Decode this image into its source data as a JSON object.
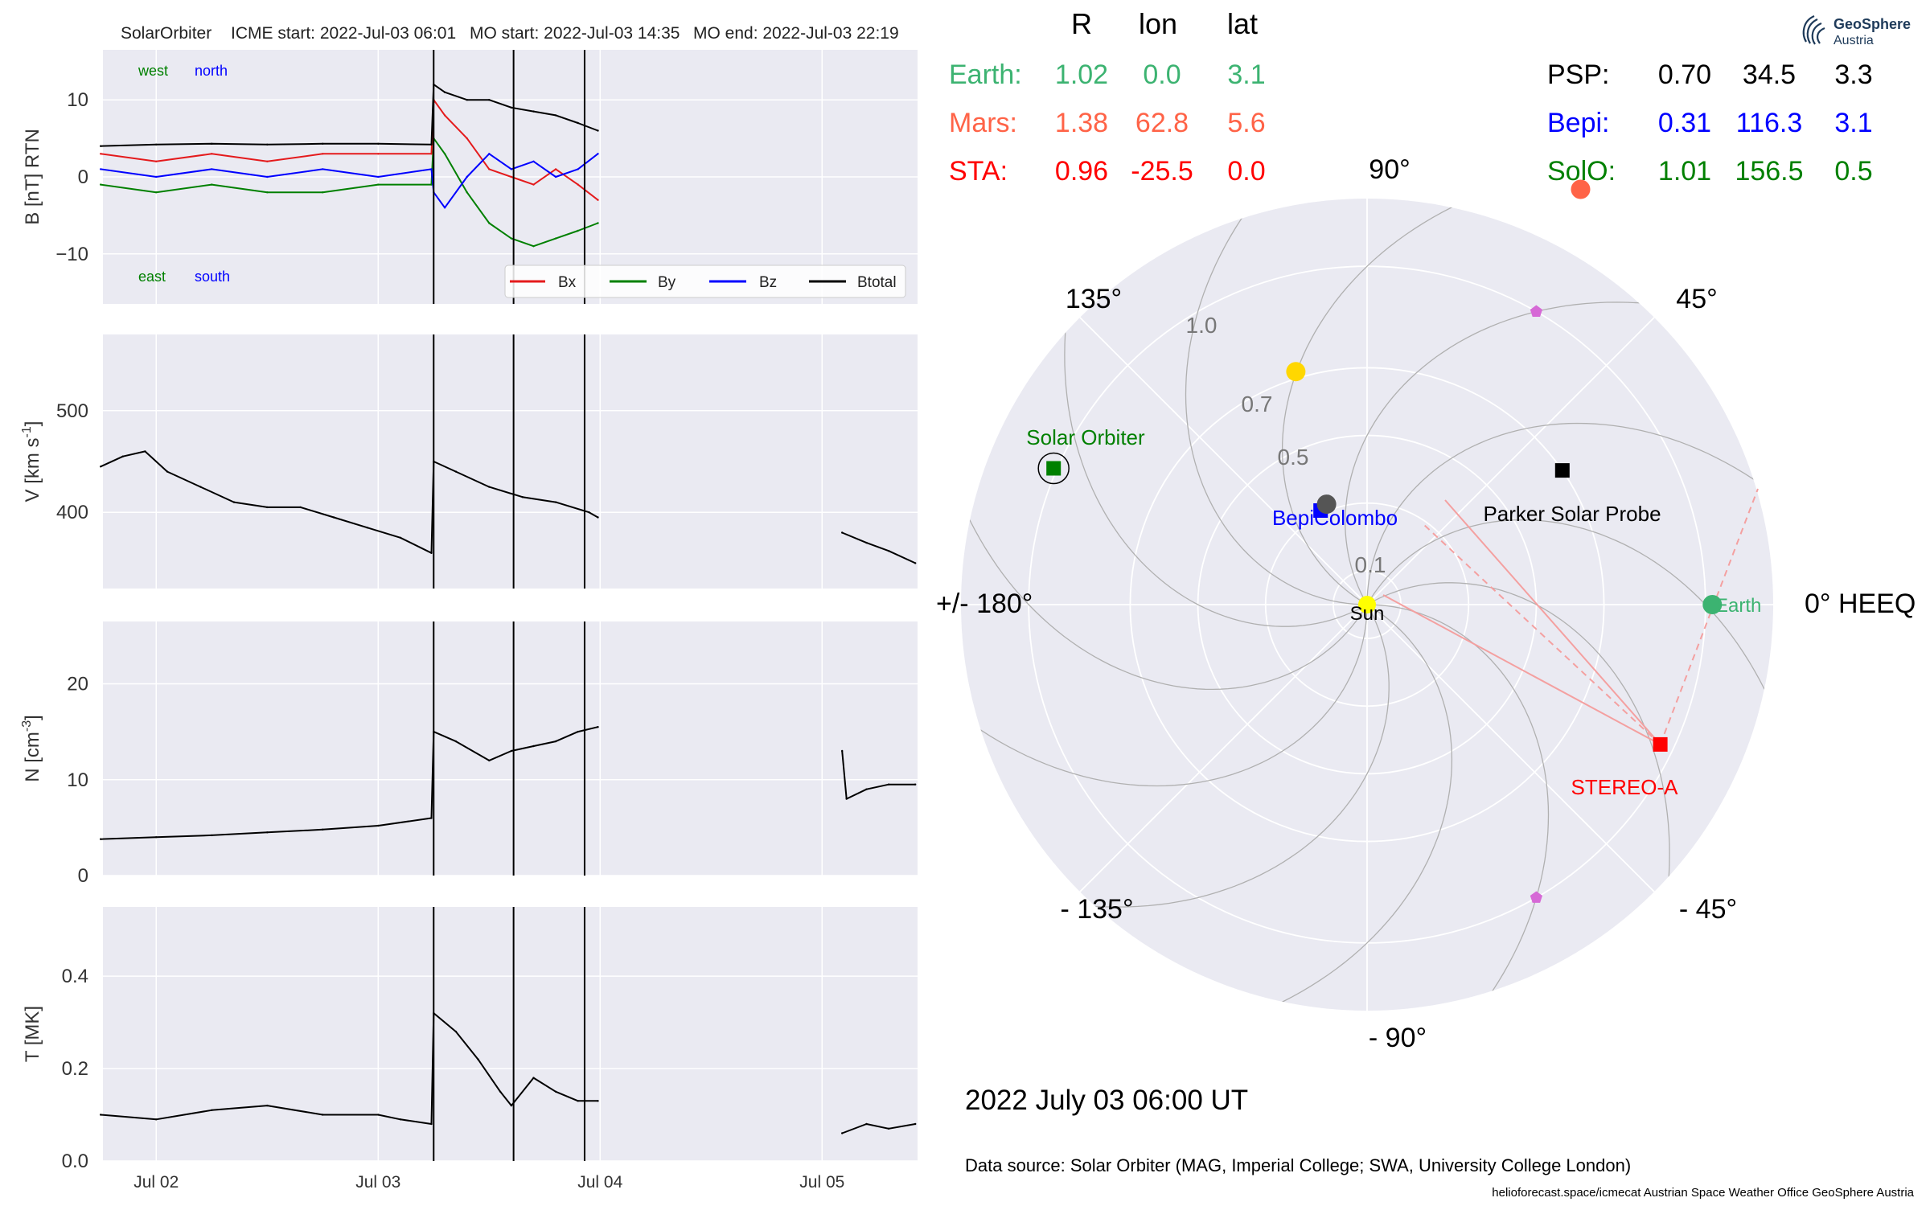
{
  "header": {
    "spacecraft": "SolarOrbiter",
    "icme_start": "ICME start: 2022-Jul-03 06:01",
    "mo_start": "MO start: 2022-Jul-03 14:35",
    "mo_end": "MO end: 2022-Jul-03 22:19"
  },
  "chart_data": [
    {
      "type": "line",
      "panel": "magnetic field",
      "ylabel": "B [nT] RTN",
      "ylim": [
        -16.5,
        16.5
      ],
      "yticks": [
        -10,
        0,
        10
      ],
      "annotations": {
        "west": "west",
        "north": "north",
        "east": "east",
        "south": "south"
      },
      "legend": {
        "placement": "bottom-right",
        "entries": [
          "Bx",
          "By",
          "Bz",
          "Btotal"
        ]
      },
      "series": [
        {
          "name": "Bx",
          "color": "#e41a1c",
          "x": [
            1.75,
            2.0,
            2.25,
            2.5,
            2.75,
            3.0,
            3.24,
            3.25,
            3.3,
            3.4,
            3.5,
            3.6,
            3.7,
            3.8,
            3.9,
            3.99
          ],
          "y": [
            3,
            2,
            3,
            2,
            3,
            3,
            3,
            10,
            8,
            5,
            1,
            0,
            -1,
            1,
            -1,
            -3
          ]
        },
        {
          "name": "By",
          "color": "#008000",
          "x": [
            1.75,
            2.0,
            2.25,
            2.5,
            2.75,
            3.0,
            3.24,
            3.25,
            3.3,
            3.4,
            3.5,
            3.6,
            3.7,
            3.8,
            3.9,
            3.99
          ],
          "y": [
            -1,
            -2,
            -1,
            -2,
            -2,
            -1,
            -1,
            5,
            3,
            -2,
            -6,
            -8,
            -9,
            -8,
            -7,
            -6
          ]
        },
        {
          "name": "Bz",
          "color": "#0000ff",
          "x": [
            1.75,
            2.0,
            2.25,
            2.5,
            2.75,
            3.0,
            3.24,
            3.25,
            3.3,
            3.4,
            3.5,
            3.6,
            3.7,
            3.8,
            3.9,
            3.99
          ],
          "y": [
            1,
            0,
            1,
            0,
            1,
            0,
            1,
            -2,
            -4,
            0,
            3,
            1,
            2,
            0,
            1,
            3
          ]
        },
        {
          "name": "Btotal",
          "color": "#000000",
          "x": [
            1.75,
            2.0,
            2.25,
            2.5,
            2.75,
            3.0,
            3.24,
            3.25,
            3.3,
            3.4,
            3.5,
            3.6,
            3.7,
            3.8,
            3.9,
            3.99
          ],
          "y": [
            4,
            4.2,
            4.3,
            4.2,
            4.3,
            4.3,
            4.2,
            12,
            11,
            10,
            10,
            9,
            8.5,
            8,
            7,
            6
          ]
        }
      ]
    },
    {
      "type": "line",
      "panel": "speed",
      "ylabel": "V [km s$^{-1}$]",
      "ylim": [
        325,
        575
      ],
      "yticks": [
        400,
        500
      ],
      "series": [
        {
          "name": "",
          "color": "#000000",
          "x": [
            1.75,
            1.85,
            1.95,
            2.05,
            2.2,
            2.35,
            2.5,
            2.65,
            2.8,
            2.95,
            3.1,
            3.24,
            3.25,
            3.35,
            3.5,
            3.65,
            3.8,
            3.95,
            3.99
          ],
          "y": [
            445,
            455,
            460,
            440,
            425,
            410,
            405,
            405,
            395,
            385,
            375,
            360,
            450,
            440,
            425,
            415,
            410,
            400,
            395
          ]
        },
        {
          "name": "",
          "color": "#000000",
          "x": [
            5.09,
            5.2,
            5.3,
            5.42
          ],
          "y": [
            380,
            370,
            362,
            350
          ]
        }
      ]
    },
    {
      "type": "line",
      "panel": "density",
      "ylabel": "N [cm$^{-3}$]",
      "ylim": [
        0,
        26.5
      ],
      "yticks": [
        0,
        10,
        20
      ],
      "series": [
        {
          "name": "",
          "color": "#000000",
          "x": [
            1.75,
            2.0,
            2.25,
            2.5,
            2.75,
            3.0,
            3.24,
            3.25,
            3.35,
            3.5,
            3.6,
            3.7,
            3.8,
            3.9,
            3.99
          ],
          "y": [
            3.8,
            4,
            4.2,
            4.5,
            4.8,
            5.2,
            6,
            15,
            14,
            12,
            13,
            13.5,
            14,
            15,
            15.5
          ]
        },
        {
          "name": "",
          "color": "#000000",
          "x": [
            5.09,
            5.11,
            5.2,
            5.3,
            5.42
          ],
          "y": [
            13,
            8,
            9,
            9.5,
            9.5
          ]
        }
      ]
    },
    {
      "type": "line",
      "panel": "temperature",
      "ylabel": "T [MK]",
      "ylim": [
        0,
        0.55
      ],
      "yticks": [
        0.0,
        0.2,
        0.4
      ],
      "xtick_labels": [
        "Jul 02",
        "Jul 03",
        "Jul 04",
        "Jul 05"
      ],
      "xticks": [
        2,
        3,
        4,
        5
      ],
      "xlim": [
        1.76,
        5.43
      ],
      "vertical_lines": [
        3.25,
        3.61,
        3.93
      ],
      "series": [
        {
          "name": "",
          "color": "#000000",
          "x": [
            1.75,
            2.0,
            2.25,
            2.5,
            2.75,
            3.0,
            3.1,
            3.24,
            3.25,
            3.35,
            3.45,
            3.55,
            3.6,
            3.7,
            3.8,
            3.9,
            3.99
          ],
          "y": [
            0.1,
            0.09,
            0.11,
            0.12,
            0.1,
            0.1,
            0.09,
            0.08,
            0.32,
            0.28,
            0.22,
            0.15,
            0.12,
            0.18,
            0.15,
            0.13,
            0.13
          ]
        },
        {
          "name": "",
          "color": "#000000",
          "x": [
            5.09,
            5.2,
            5.3,
            5.42
          ],
          "y": [
            0.06,
            0.08,
            0.07,
            0.08
          ]
        }
      ]
    },
    {
      "type": "scatter",
      "panel": "heliospheric position (polar)",
      "angle_labels": {
        "a90": "90°",
        "a45": "45°",
        "a0": "0° HEEQ",
        "am45": "- 45°",
        "am90": "- 90°",
        "am135": "- 135°",
        "a180": "+/- 180°",
        "a135": "135°"
      },
      "radial_ticks": [
        "0.1",
        "0.5",
        "0.7",
        "1.0"
      ],
      "rlim": [
        0,
        1.2
      ],
      "bodies": [
        {
          "name": "Sun",
          "label": "Sun",
          "r": 0,
          "lon": 0,
          "color": "#ffff00",
          "marker": "circle"
        },
        {
          "name": "Earth",
          "label": "Earth",
          "r": 1.02,
          "lon": 0.0,
          "color": "#3cb371",
          "marker": "circle"
        },
        {
          "name": "STEREO-A",
          "label": "STEREO-A",
          "r": 0.96,
          "lon": -25.5,
          "color": "#ff0000",
          "marker": "square"
        },
        {
          "name": "Solar Orbiter",
          "label": "Solar Orbiter",
          "r": 1.01,
          "lon": 156.5,
          "color": "#008000",
          "marker": "square"
        },
        {
          "name": "BepiColombo",
          "label": "BepiColombo",
          "r": 0.31,
          "lon": 116.3,
          "color": "#0000ff",
          "marker": "square"
        },
        {
          "name": "Parker Solar Probe",
          "label": "Parker Solar Probe",
          "r": 0.7,
          "lon": 34.5,
          "color": "#000000",
          "marker": "square"
        },
        {
          "name": "Mars",
          "r": 1.38,
          "lon": 62.8,
          "color": "#ff6347",
          "marker": "circle"
        },
        {
          "name": "Venus",
          "r": 0.72,
          "lon": 107,
          "color": "#ffd700",
          "marker": "circle"
        },
        {
          "name": "Mercury",
          "r": 0.32,
          "lon": 112,
          "color": "#555555",
          "marker": "circle"
        },
        {
          "name": "L4",
          "r": 1.0,
          "lon": 60,
          "color": "#d669d6",
          "marker": "pentagon"
        },
        {
          "name": "L5",
          "r": 1.0,
          "lon": -60,
          "color": "#d669d6",
          "marker": "pentagon"
        }
      ]
    }
  ],
  "positions_table": {
    "headers": [
      "R",
      "lon",
      "lat"
    ],
    "left": [
      {
        "label": "Earth:",
        "r": "1.02",
        "lon": "0.0",
        "lat": "3.1",
        "color": "#3cb371"
      },
      {
        "label": "Mars:",
        "r": "1.38",
        "lon": "62.8",
        "lat": "5.6",
        "color": "#ff6347"
      },
      {
        "label": "STA:",
        "r": "0.96",
        "lon": "-25.5",
        "lat": "0.0",
        "color": "#ff0000"
      }
    ],
    "right": [
      {
        "label": "PSP:",
        "r": "0.70",
        "lon": "34.5",
        "lat": "3.3",
        "color": "#000000"
      },
      {
        "label": "Bepi:",
        "r": "0.31",
        "lon": "116.3",
        "lat": "3.1",
        "color": "#0000ff"
      },
      {
        "label": "SolO:",
        "r": "1.01",
        "lon": "156.5",
        "lat": "0.5",
        "color": "#008000"
      }
    ]
  },
  "timestamp": "2022 July 03  06:00 UT",
  "data_source": "Data source: Solar Orbiter (MAG, Imperial College; SWA, University College London)",
  "footer": "helioforecast.space/icmecat   Austrian Space Weather Office   GeoSphere Austria",
  "logo": {
    "line1": "GeoSphere",
    "line2": "Austria"
  }
}
